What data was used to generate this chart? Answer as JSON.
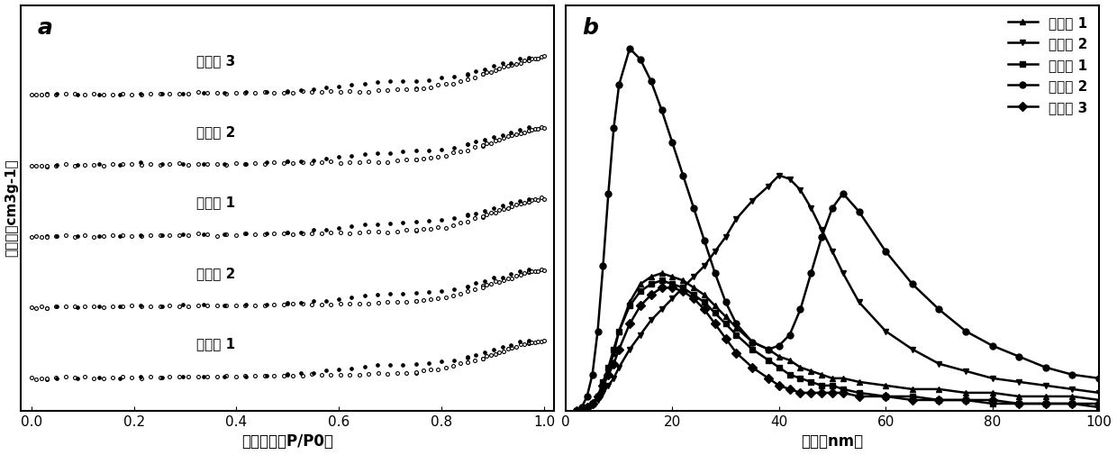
{
  "panel_a_label": "a",
  "panel_b_label": "b",
  "panel_a_xlabel": "相对压力（P/P0）",
  "panel_a_ylabel": "吸附量（cm3g-1）",
  "panel_b_xlabel": "孔径（nm）",
  "panel_a_labels": [
    "对比例 3",
    "对比例 2",
    "对比例 1",
    "实施例 2",
    "实施例 1"
  ],
  "panel_a_offsets": [
    4.0,
    3.0,
    2.0,
    1.0,
    0.0
  ],
  "panel_b_legend": [
    "实施例 1",
    "实施例 2",
    "对比例 1",
    "对比例 2",
    "对比例 3"
  ],
  "background_color": "#ffffff"
}
